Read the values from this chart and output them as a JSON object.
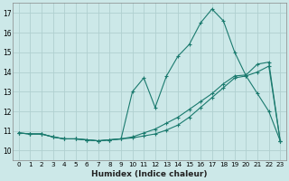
{
  "xlabel": "Humidex (Indice chaleur)",
  "ylabel": "",
  "bg_color": "#cce8e8",
  "grid_color": "#b0d0d0",
  "line_color": "#1a7a6e",
  "xlim_min": -0.5,
  "xlim_max": 23.5,
  "ylim_min": 9.5,
  "ylim_max": 17.5,
  "xticks": [
    0,
    1,
    2,
    3,
    4,
    5,
    6,
    7,
    8,
    9,
    10,
    11,
    12,
    13,
    14,
    15,
    16,
    17,
    18,
    19,
    20,
    21,
    22,
    23
  ],
  "yticks": [
    10,
    11,
    12,
    13,
    14,
    15,
    16,
    17
  ],
  "series1_x": [
    0,
    1,
    2,
    3,
    4,
    5,
    6,
    7,
    8,
    9,
    10,
    11,
    12,
    13,
    14,
    15,
    16,
    17,
    18,
    19,
    20,
    21,
    22,
    23
  ],
  "series1_y": [
    10.9,
    10.85,
    10.85,
    10.7,
    10.6,
    10.6,
    10.55,
    10.5,
    10.55,
    10.6,
    13.0,
    13.7,
    12.2,
    13.8,
    14.8,
    15.4,
    16.5,
    17.2,
    16.6,
    15.0,
    13.8,
    12.9,
    12.0,
    10.5
  ],
  "series2_x": [
    0,
    1,
    2,
    3,
    4,
    5,
    6,
    7,
    8,
    9,
    10,
    11,
    12,
    13,
    14,
    15,
    16,
    17,
    18,
    19,
    20,
    21,
    22,
    23
  ],
  "series2_y": [
    10.9,
    10.85,
    10.85,
    10.7,
    10.6,
    10.6,
    10.55,
    10.5,
    10.55,
    10.6,
    10.7,
    10.9,
    11.1,
    11.4,
    11.7,
    12.1,
    12.5,
    12.9,
    13.4,
    13.8,
    13.85,
    14.4,
    14.5,
    10.5
  ],
  "series3_x": [
    0,
    1,
    2,
    3,
    4,
    5,
    6,
    7,
    8,
    9,
    10,
    11,
    12,
    13,
    14,
    15,
    16,
    17,
    18,
    19,
    20,
    21,
    22,
    23
  ],
  "series3_y": [
    10.9,
    10.85,
    10.85,
    10.7,
    10.6,
    10.6,
    10.55,
    10.5,
    10.55,
    10.6,
    10.65,
    10.75,
    10.85,
    11.05,
    11.3,
    11.7,
    12.2,
    12.7,
    13.2,
    13.7,
    13.8,
    14.0,
    14.3,
    10.5
  ]
}
